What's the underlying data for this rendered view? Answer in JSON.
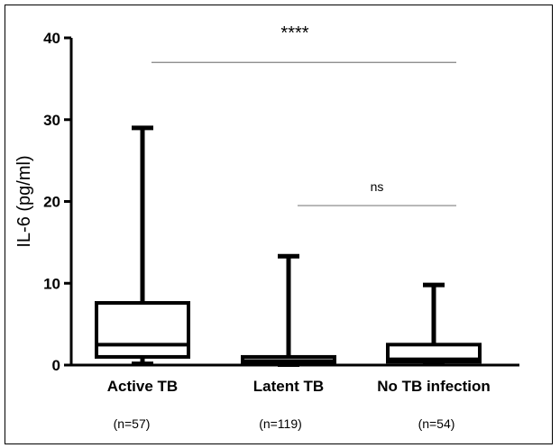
{
  "chart_data": {
    "type": "boxplot",
    "ylabel": "IL-6 (pg/ml)",
    "ylim": [
      0,
      40
    ],
    "yticks": [
      0,
      10,
      20,
      30,
      40
    ],
    "categories": [
      "Active TB",
      "Latent TB",
      "No TB infection"
    ],
    "sample_sizes": [
      "(n=57)",
      "(n=119)",
      "(n=54)"
    ],
    "boxes": [
      {
        "category": "Active TB",
        "whisker_low": 0.2,
        "q1": 1.0,
        "median": 2.5,
        "q3": 7.6,
        "whisker_high": 29.0
      },
      {
        "category": "Latent TB",
        "whisker_low": 0.0,
        "q1": 0.2,
        "median": 0.5,
        "q3": 1.0,
        "whisker_high": 13.3
      },
      {
        "category": "No TB infection",
        "whisker_low": 0.1,
        "q1": 0.4,
        "median": 0.7,
        "q3": 2.5,
        "whisker_high": 9.8
      }
    ],
    "significance": [
      {
        "from": "Active TB",
        "to": "No TB infection",
        "y": 37,
        "label": "****"
      },
      {
        "from": "Latent TB",
        "to": "No TB infection",
        "y": 19.5,
        "label": "ns"
      }
    ],
    "legend": "none",
    "grid": false
  }
}
